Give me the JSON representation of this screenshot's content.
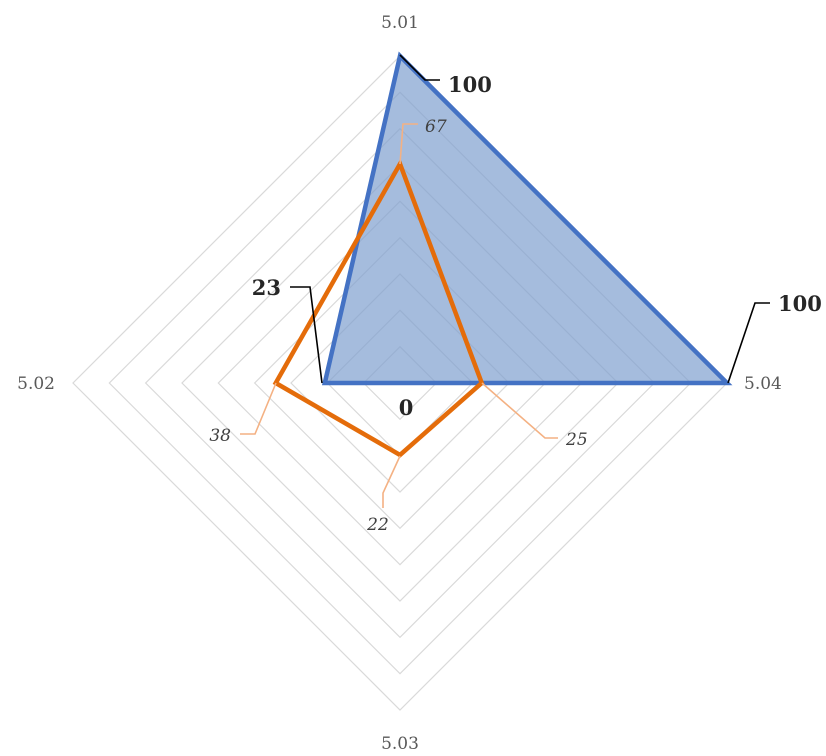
{
  "chart_data": {
    "type": "radar",
    "title": "",
    "categories": [
      "5.01",
      "5.04",
      "5.03",
      "5.02"
    ],
    "rmax": 100,
    "grid_steps": 9,
    "grid": true,
    "legend": "none",
    "series": [
      {
        "values": [
          100,
          100,
          0,
          23
        ],
        "labels": [
          "100",
          "100",
          "0",
          "23"
        ],
        "fill": true,
        "color": "#4472c4",
        "fill_color": "#7f9fcf"
      },
      {
        "values": [
          67,
          25,
          22,
          38
        ],
        "labels": [
          "67",
          "25",
          "22",
          "38"
        ],
        "fill": false,
        "color": "#e46c0a"
      }
    ]
  }
}
